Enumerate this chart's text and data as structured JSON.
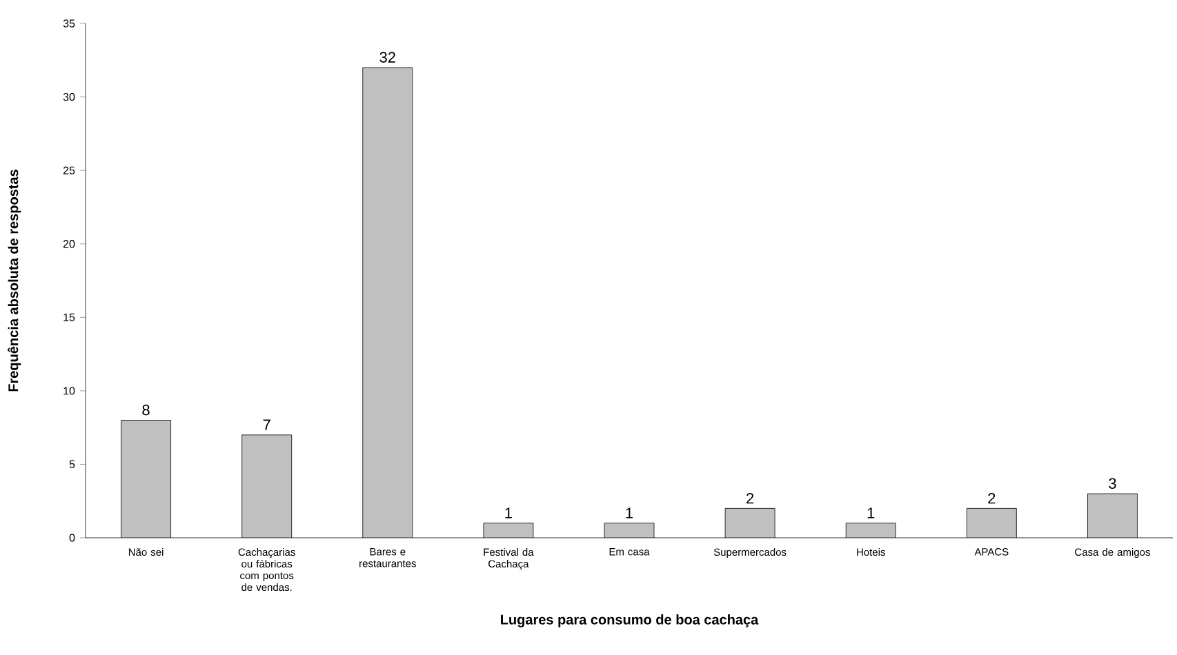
{
  "chart_data": {
    "type": "bar",
    "xlabel": "Lugares para consumo de boa cachaça",
    "ylabel": "Frequência absoluta de respostas",
    "categories": [
      "Não sei",
      "Cachaçarias ou fábricas com pontos de vendas.",
      "Bares e restaurantes",
      "Festival da Cachaça",
      "Em casa",
      "Supermercados",
      "Hoteis",
      "APACS",
      "Casa de amigos"
    ],
    "values": [
      8,
      7,
      32,
      1,
      1,
      2,
      1,
      2,
      3
    ],
    "color": "#c0c0c0",
    "ylim": [
      0,
      35
    ],
    "yticks": [
      0,
      5,
      10,
      15,
      20,
      25,
      30,
      35
    ],
    "grid": false,
    "data_labels": true
  }
}
